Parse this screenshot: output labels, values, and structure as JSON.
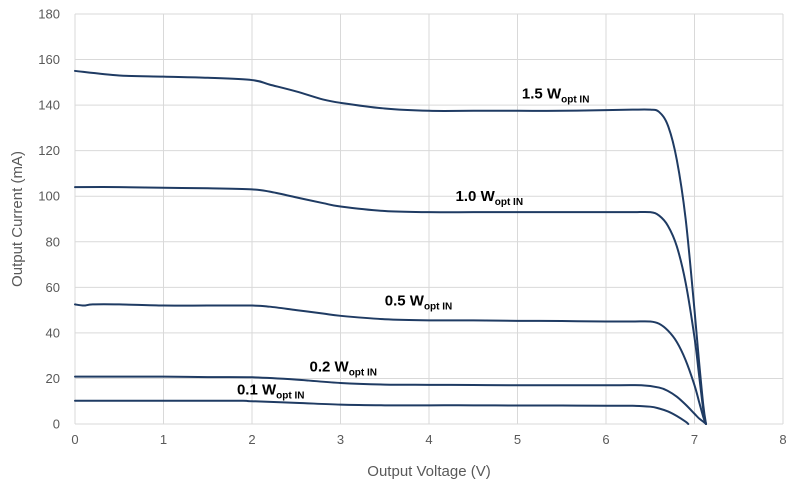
{
  "chart_data": {
    "type": "line",
    "xlabel": "Output Voltage (V)",
    "ylabel": "Output Current (mA)",
    "xlim": [
      0,
      8
    ],
    "ylim": [
      0,
      180
    ],
    "x_ticks": [
      0,
      1,
      2,
      3,
      4,
      5,
      6,
      7,
      8
    ],
    "y_ticks": [
      0,
      20,
      40,
      60,
      80,
      100,
      120,
      140,
      160,
      180
    ],
    "grid": true,
    "legend": "none",
    "line_color": "#1f3b63",
    "grid_color": "#d9d9d9",
    "series": [
      {
        "name": "1.5 W",
        "subscript": "opt IN",
        "label_at": [
          5.05,
          143
        ],
        "x": [
          0,
          0.5,
          1,
          1.5,
          2,
          2.2,
          2.5,
          2.8,
          3,
          3.5,
          4,
          4.5,
          5,
          5.5,
          6,
          6.3,
          6.5,
          6.6,
          6.7,
          6.8,
          6.9,
          7.0,
          7.05,
          7.1,
          7.13
        ],
        "y": [
          155,
          153,
          152.5,
          152,
          151,
          149,
          146,
          142.5,
          141,
          138.5,
          137.5,
          137.5,
          137.5,
          137.5,
          137.8,
          138,
          138,
          137,
          131,
          116,
          90,
          50,
          28,
          8,
          0
        ]
      },
      {
        "name": "1.0 W",
        "subscript": "opt IN",
        "label_at": [
          4.3,
          98
        ],
        "x": [
          0,
          0.5,
          1,
          1.5,
          2,
          2.2,
          2.5,
          2.8,
          3,
          3.5,
          4,
          4.5,
          5,
          5.5,
          6,
          6.3,
          6.5,
          6.6,
          6.7,
          6.8,
          6.9,
          7.0,
          7.05,
          7.1,
          7.13
        ],
        "y": [
          104,
          104,
          103.7,
          103.5,
          103,
          102,
          99.5,
          97,
          95.5,
          93.5,
          93,
          93,
          93,
          93,
          93,
          93,
          93,
          91.5,
          87,
          78,
          62,
          38,
          22,
          6,
          0
        ]
      },
      {
        "name": "0.5 W",
        "subscript": "opt IN",
        "label_at": [
          3.5,
          52
        ],
        "x": [
          0,
          0.1,
          0.2,
          0.5,
          1,
          1.5,
          2,
          2.2,
          2.5,
          2.8,
          3,
          3.5,
          4,
          4.5,
          5,
          5.5,
          6,
          6.3,
          6.5,
          6.6,
          6.7,
          6.8,
          6.9,
          7.0,
          7.05,
          7.1,
          7.13
        ],
        "y": [
          52.5,
          52,
          52.5,
          52.5,
          52,
          52,
          52,
          51.5,
          50,
          48.5,
          47.5,
          46,
          45.5,
          45.5,
          45.3,
          45.2,
          45,
          45,
          45,
          44,
          41,
          36,
          28,
          17,
          10,
          3,
          0
        ]
      },
      {
        "name": "0.2 W",
        "subscript": "opt IN",
        "label_at": [
          2.65,
          23
        ],
        "x": [
          0,
          0.5,
          1,
          1.5,
          2,
          2.5,
          3,
          3.5,
          4,
          4.5,
          5,
          5.5,
          6,
          6.4,
          6.6,
          6.7,
          6.8,
          6.9,
          7.0,
          7.05,
          7.1,
          7.13
        ],
        "y": [
          20.8,
          20.8,
          20.8,
          20.6,
          20.5,
          19.5,
          18,
          17.3,
          17.2,
          17.1,
          17,
          17,
          17,
          17,
          16,
          14.5,
          12,
          8.5,
          4.5,
          2.5,
          1,
          0
        ]
      },
      {
        "name": "0.1 W",
        "subscript": "opt IN",
        "label_at": [
          1.83,
          13
        ],
        "x": [
          0,
          0.5,
          1,
          1.5,
          1.9,
          2,
          2.5,
          3,
          3.5,
          4,
          4.5,
          5,
          5.5,
          6,
          6.3,
          6.5,
          6.6,
          6.7,
          6.8,
          6.9,
          6.93
        ],
        "y": [
          10.2,
          10.2,
          10.2,
          10.2,
          10.2,
          10,
          9.3,
          8.5,
          8.2,
          8.2,
          8.2,
          8.1,
          8.1,
          8,
          8,
          7.6,
          6.8,
          5.5,
          3.5,
          1,
          0
        ]
      }
    ]
  }
}
